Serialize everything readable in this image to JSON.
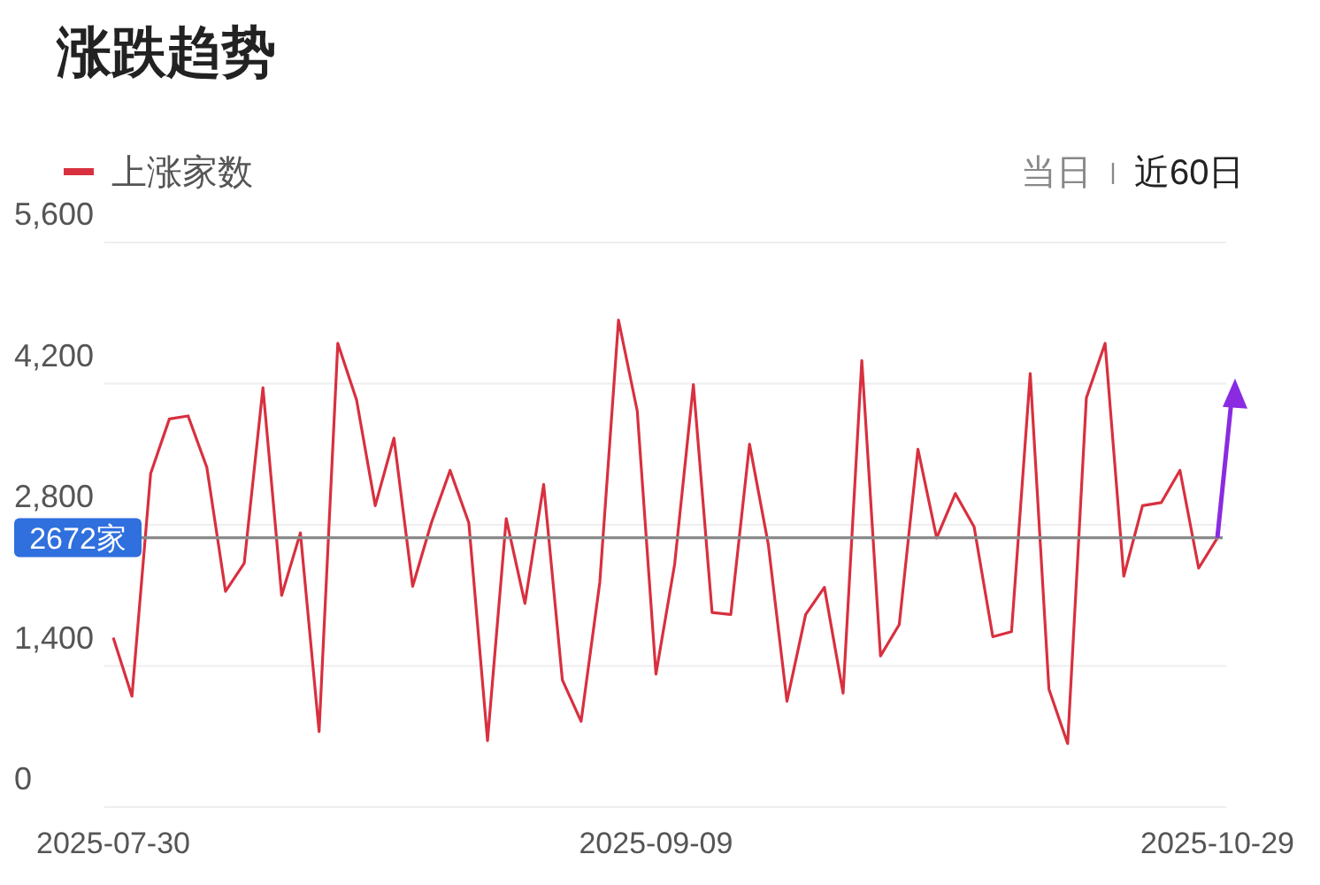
{
  "chart_data": {
    "type": "line",
    "title": "涨跌趋势",
    "categories": [
      "2025-07-30",
      null,
      null,
      null,
      null,
      null,
      null,
      null,
      null,
      null,
      null,
      null,
      null,
      null,
      null,
      null,
      null,
      null,
      null,
      null,
      null,
      null,
      null,
      null,
      null,
      null,
      null,
      null,
      null,
      "2025-09-09",
      null,
      null,
      null,
      null,
      null,
      null,
      null,
      null,
      null,
      null,
      null,
      null,
      null,
      null,
      null,
      null,
      null,
      null,
      null,
      null,
      null,
      null,
      null,
      null,
      null,
      null,
      null,
      null,
      null,
      "2025-10-29"
    ],
    "series": [
      {
        "name": "上涨家数",
        "color": "#d8303f",
        "values": [
          1680,
          1100,
          3310,
          3850,
          3880,
          3370,
          2140,
          2420,
          4160,
          2100,
          2720,
          750,
          4600,
          4040,
          2990,
          3660,
          2190,
          2820,
          3340,
          2820,
          660,
          2860,
          2020,
          3200,
          1260,
          850,
          2230,
          4830,
          3930,
          1320,
          2410,
          4190,
          1930,
          1910,
          3600,
          2610,
          1050,
          1910,
          2180,
          1130,
          4430,
          1500,
          1810,
          3550,
          2670,
          3110,
          2780,
          1690,
          1740,
          4300,
          1170,
          630,
          4060,
          4600,
          2290,
          2990,
          3020,
          3340,
          2370,
          2670
        ]
      }
    ],
    "ylim": [
      0,
      5600
    ],
    "yticks": [
      0,
      {
        "value": 1400,
        "label": "1,400"
      },
      {
        "value": 2800,
        "label": "2,800"
      },
      {
        "value": 4200,
        "label": "4,200"
      },
      {
        "value": 5600,
        "label": "5,600"
      }
    ],
    "grid": "y",
    "legend": "top left",
    "marker": "none",
    "line_style": "solid",
    "ref_lines": [
      {
        "axis": "y",
        "value": 2672,
        "label": "2672家",
        "color": "#8a8a8a"
      }
    ],
    "annotations": [
      "当日",
      "近60日"
    ]
  }
}
